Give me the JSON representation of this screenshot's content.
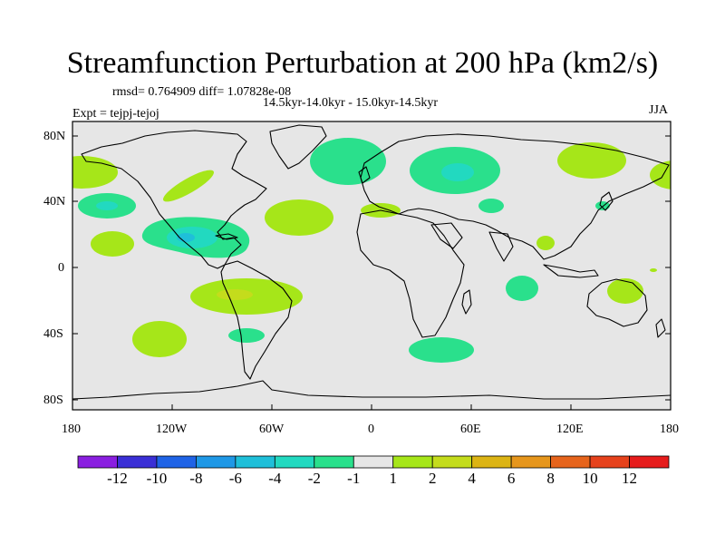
{
  "figure": {
    "title": "Streamfunction Perturbation at 200 hPa (km2/s)",
    "rmsd_text": "rmsd= 0.764909 diff= 1.07828e-08",
    "period": "14.5kyr-14.0kyr - 15.0kyr-14.5kyr",
    "experiment": "Expt = tejpj-tejoj",
    "season": "JJA"
  },
  "axes": {
    "lat_labels": [
      "80N",
      "40N",
      "0",
      "40S",
      "80S"
    ],
    "lon_labels": [
      "180",
      "120W",
      "60W",
      "0",
      "60E",
      "120E",
      "180"
    ]
  },
  "colorbar": {
    "colors": [
      "#8a1fe0",
      "#3a2fd6",
      "#1f63e6",
      "#1f98e6",
      "#1fbfd9",
      "#22d9c0",
      "#2ae08c",
      "#e6e6e6",
      "#a6e619",
      "#c4dc1c",
      "#dcb414",
      "#e6961c",
      "#e6641c",
      "#e6421c",
      "#e61c1c"
    ],
    "labels": [
      "-12",
      "-10",
      "-8",
      "-6",
      "-4",
      "-2",
      "-1",
      "1",
      "2",
      "4",
      "6",
      "8",
      "10",
      "12"
    ]
  },
  "colors": {
    "land_ocean_background": "#e6e6e6",
    "positive_2": "#a6e619",
    "positive_4": "#c4dc1c",
    "negative_1": "#2ae08c",
    "negative_2": "#22d9c0",
    "negative_4": "#1fbfd9"
  }
}
